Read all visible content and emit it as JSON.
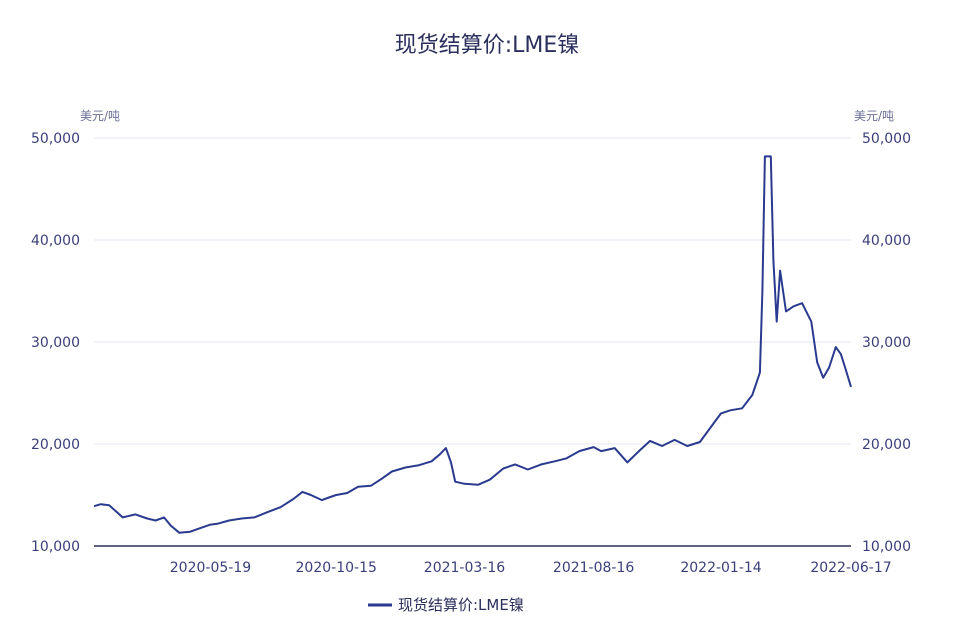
{
  "chart_data": {
    "type": "line",
    "title": "现货结算价:LME镍",
    "y_unit_left": "美元/吨",
    "y_unit_right": "美元/吨",
    "ylim": [
      10000,
      50000
    ],
    "y_ticks": [
      "10,000",
      "20,000",
      "30,000",
      "40,000",
      "50,000"
    ],
    "y_tick_values": [
      10000,
      20000,
      30000,
      40000,
      50000
    ],
    "x_range": [
      "2020-01-02",
      "2022-06-17"
    ],
    "x_tick_labels": [
      "2020-05-19",
      "2020-10-15",
      "2021-03-16",
      "2021-08-16",
      "2022-01-14",
      "2022-06-17"
    ],
    "grid": true,
    "legend_position": "bottom",
    "series": [
      {
        "name": "现货结算价:LME镍",
        "color": "#2a3a8f",
        "points": [
          [
            "2020-01-02",
            13900
          ],
          [
            "2020-01-10",
            14100
          ],
          [
            "2020-01-20",
            14000
          ],
          [
            "2020-01-28",
            13400
          ],
          [
            "2020-02-05",
            12800
          ],
          [
            "2020-02-20",
            13100
          ],
          [
            "2020-03-05",
            12700
          ],
          [
            "2020-03-15",
            12500
          ],
          [
            "2020-03-25",
            12800
          ],
          [
            "2020-04-02",
            12000
          ],
          [
            "2020-04-12",
            11300
          ],
          [
            "2020-04-25",
            11400
          ],
          [
            "2020-05-05",
            11700
          ],
          [
            "2020-05-19",
            12100
          ],
          [
            "2020-05-28",
            12200
          ],
          [
            "2020-06-10",
            12500
          ],
          [
            "2020-06-25",
            12700
          ],
          [
            "2020-07-10",
            12800
          ],
          [
            "2020-07-25",
            13300
          ],
          [
            "2020-08-10",
            13800
          ],
          [
            "2020-08-25",
            14600
          ],
          [
            "2020-09-05",
            15300
          ],
          [
            "2020-09-15",
            15000
          ],
          [
            "2020-09-28",
            14500
          ],
          [
            "2020-10-08",
            14800
          ],
          [
            "2020-10-15",
            15000
          ],
          [
            "2020-10-28",
            15200
          ],
          [
            "2020-11-10",
            15800
          ],
          [
            "2020-11-25",
            15900
          ],
          [
            "2020-12-08",
            16600
          ],
          [
            "2020-12-20",
            17300
          ],
          [
            "2021-01-05",
            17700
          ],
          [
            "2021-01-20",
            17900
          ],
          [
            "2021-02-05",
            18300
          ],
          [
            "2021-02-15",
            19000
          ],
          [
            "2021-02-22",
            19600
          ],
          [
            "2021-02-28",
            18200
          ],
          [
            "2021-03-05",
            16300
          ],
          [
            "2021-03-16",
            16100
          ],
          [
            "2021-04-01",
            16000
          ],
          [
            "2021-04-15",
            16500
          ],
          [
            "2021-05-01",
            17600
          ],
          [
            "2021-05-15",
            18000
          ],
          [
            "2021-05-30",
            17500
          ],
          [
            "2021-06-15",
            18000
          ],
          [
            "2021-07-01",
            18300
          ],
          [
            "2021-07-15",
            18600
          ],
          [
            "2021-07-30",
            19300
          ],
          [
            "2021-08-16",
            19700
          ],
          [
            "2021-08-25",
            19300
          ],
          [
            "2021-09-10",
            19600
          ],
          [
            "2021-09-25",
            18200
          ],
          [
            "2021-10-10",
            19400
          ],
          [
            "2021-10-22",
            20300
          ],
          [
            "2021-11-05",
            19800
          ],
          [
            "2021-11-20",
            20400
          ],
          [
            "2021-12-05",
            19800
          ],
          [
            "2021-12-20",
            20200
          ],
          [
            "2022-01-05",
            22000
          ],
          [
            "2022-01-14",
            23000
          ],
          [
            "2022-01-25",
            23300
          ],
          [
            "2022-02-08",
            23500
          ],
          [
            "2022-02-20",
            24800
          ],
          [
            "2022-03-01",
            27000
          ],
          [
            "2022-03-04",
            35000
          ],
          [
            "2022-03-07",
            48200
          ],
          [
            "2022-03-14",
            48200
          ],
          [
            "2022-03-17",
            38000
          ],
          [
            "2022-03-21",
            32000
          ],
          [
            "2022-03-25",
            37000
          ],
          [
            "2022-04-01",
            33000
          ],
          [
            "2022-04-10",
            33500
          ],
          [
            "2022-04-20",
            33800
          ],
          [
            "2022-05-01",
            32000
          ],
          [
            "2022-05-08",
            28000
          ],
          [
            "2022-05-15",
            26500
          ],
          [
            "2022-05-22",
            27500
          ],
          [
            "2022-05-30",
            29500
          ],
          [
            "2022-06-05",
            28800
          ],
          [
            "2022-06-10",
            27500
          ],
          [
            "2022-06-17",
            25600
          ]
        ]
      }
    ]
  }
}
